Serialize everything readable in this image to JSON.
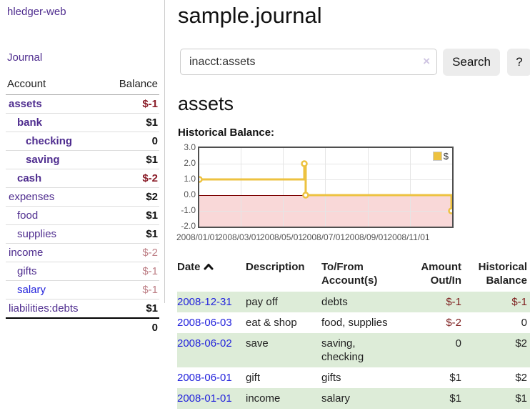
{
  "app": {
    "brand": "hledger-web",
    "nav_journal": "Journal"
  },
  "sidebar": {
    "header": {
      "account": "Account",
      "balance": "Balance"
    },
    "accounts": [
      {
        "name": "assets",
        "balance": "$-1",
        "indent": 1,
        "selected": true,
        "negative": "dark"
      },
      {
        "name": "bank",
        "balance": "$1",
        "indent": 2,
        "selected": true,
        "negative": "none"
      },
      {
        "name": "checking",
        "balance": "0",
        "indent": 3,
        "selected": true,
        "negative": "none"
      },
      {
        "name": "saving",
        "balance": "$1",
        "indent": 3,
        "selected": true,
        "negative": "none"
      },
      {
        "name": "cash",
        "balance": "$-2",
        "indent": 2,
        "selected": true,
        "negative": "dark"
      },
      {
        "name": "expenses",
        "balance": "$2",
        "indent": 1,
        "selected": false,
        "negative": "none"
      },
      {
        "name": "food",
        "balance": "$1",
        "indent": 2,
        "selected": false,
        "negative": "none"
      },
      {
        "name": "supplies",
        "balance": "$1",
        "indent": 2,
        "selected": false,
        "negative": "none"
      },
      {
        "name": "income",
        "balance": "$-2",
        "indent": 1,
        "selected": false,
        "negative": "light"
      },
      {
        "name": "gifts",
        "balance": "$-1",
        "indent": 2,
        "selected": false,
        "negative": "light"
      },
      {
        "name": "salary",
        "balance": "$-1",
        "indent": 2,
        "selected": false,
        "negative": "light",
        "link_color": "blue"
      },
      {
        "name": "liabilities:debts",
        "balance": "$1",
        "indent": 1,
        "selected": false,
        "negative": "none"
      }
    ],
    "total": "0"
  },
  "main": {
    "title": "sample.journal",
    "search": {
      "value": "inacct:assets",
      "clear_icon": "×",
      "button": "Search",
      "help_button": "?"
    },
    "account_heading": "assets",
    "chart_label": "Historical Balance:"
  },
  "chart_data": {
    "type": "line",
    "title": "Historical Balance:",
    "step": true,
    "series": [
      {
        "name": "$",
        "color": "#edc240",
        "points": [
          [
            "2008-01-01",
            1
          ],
          [
            "2008-06-01",
            2
          ],
          [
            "2008-06-03",
            0
          ],
          [
            "2008-12-31",
            -1
          ]
        ]
      }
    ],
    "x_ticks": [
      "2008/01/01",
      "2008/03/01",
      "2008/05/01",
      "2008/07/01",
      "2008/09/01",
      "2008/11/01"
    ],
    "y_ticks": [
      3.0,
      2.0,
      1.0,
      0.0,
      -1.0,
      -2.0
    ],
    "xlim": [
      "2008-01-01",
      "2009-01-01"
    ],
    "ylim": [
      -2,
      3
    ],
    "grid": true,
    "legend": {
      "label": "$",
      "position": "top-right"
    },
    "negative_region_color": "#f9d8d8",
    "zero_line_color": "#7b0000"
  },
  "register": {
    "headers": {
      "date": "Date",
      "description": "Description",
      "tofrom": "To/From\nAccount(s)",
      "amount": "Amount\nOut/In",
      "historical": "Historical\nBalance"
    },
    "rows": [
      {
        "date": "2008-12-31",
        "description": "pay off",
        "tofrom": "debts",
        "amount": "$-1",
        "amount_neg": true,
        "historical": "$-1",
        "historical_neg": true
      },
      {
        "date": "2008-06-03",
        "description": "eat & shop",
        "tofrom": "food, supplies",
        "amount": "$-2",
        "amount_neg": true,
        "historical": "0",
        "historical_neg": false
      },
      {
        "date": "2008-06-02",
        "description": "save",
        "tofrom": "saving,\nchecking",
        "amount": "0",
        "amount_neg": false,
        "historical": "$2",
        "historical_neg": false
      },
      {
        "date": "2008-06-01",
        "description": "gift",
        "tofrom": "gifts",
        "amount": "$1",
        "amount_neg": false,
        "historical": "$2",
        "historical_neg": false
      },
      {
        "date": "2008-01-01",
        "description": "income",
        "tofrom": "salary",
        "amount": "$1",
        "amount_neg": false,
        "historical": "$1",
        "historical_neg": false
      }
    ]
  }
}
